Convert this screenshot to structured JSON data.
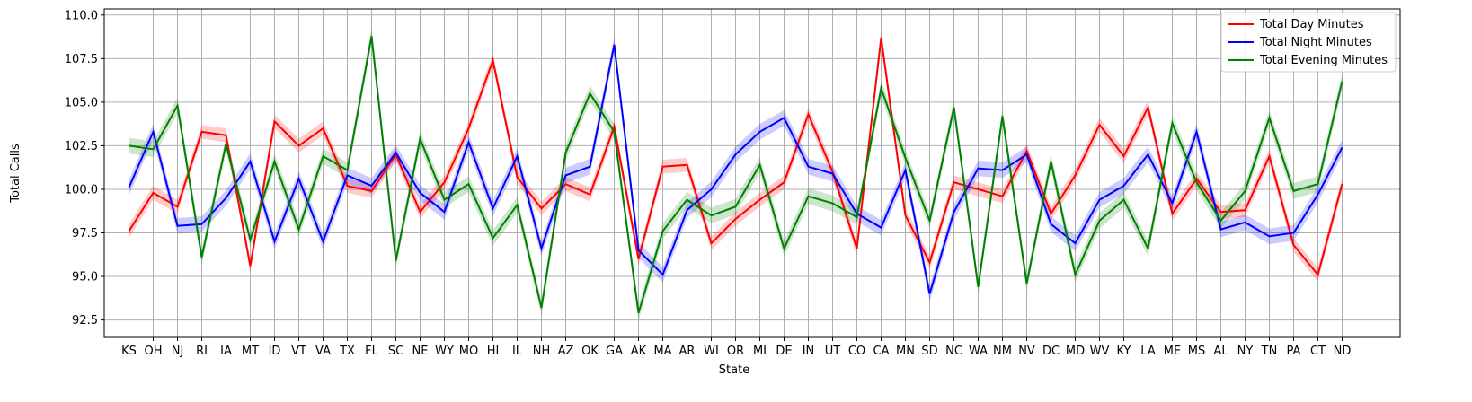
{
  "chart_data": {
    "type": "line",
    "title": "",
    "xlabel": "State",
    "ylabel": "Total Calls",
    "ylim": [
      91.5,
      110.35
    ],
    "yticks": [
      "92.5",
      "95.0",
      "97.5",
      "100.0",
      "102.5",
      "105.0",
      "107.5",
      "110.0"
    ],
    "grid": true,
    "legend_position": "top-right",
    "categories": [
      "KS",
      "OH",
      "NJ",
      "RI",
      "IA",
      "MT",
      "ID",
      "VT",
      "VA",
      "TX",
      "FL",
      "SC",
      "NE",
      "WY",
      "MO",
      "HI",
      "IL",
      "NH",
      "AZ",
      "OK",
      "GA",
      "AK",
      "MA",
      "AR",
      "WI",
      "OR",
      "MI",
      "DE",
      "IN",
      "UT",
      "CO",
      "CA",
      "MN",
      "SD",
      "NC",
      "WA",
      "NM",
      "NV",
      "DC",
      "MD",
      "WV",
      "KY",
      "LA",
      "ME",
      "MS",
      "AL",
      "NY",
      "TN",
      "PA",
      "CT",
      "ND"
    ],
    "series": [
      {
        "name": "Total Day Minutes",
        "color": "#ff0000",
        "values": [
          97.6,
          99.8,
          99.0,
          103.3,
          103.1,
          95.6,
          103.9,
          102.5,
          103.5,
          100.2,
          99.9,
          102.0,
          98.7,
          100.4,
          103.5,
          107.4,
          100.7,
          98.9,
          100.3,
          99.7,
          103.6,
          96.0,
          101.3,
          101.4,
          96.9,
          98.3,
          99.4,
          100.4,
          104.3,
          101.0,
          96.6,
          108.7,
          98.5,
          95.8,
          100.4,
          100.0,
          99.6,
          102.2,
          98.6,
          100.8,
          103.7,
          101.9,
          104.7,
          98.6,
          100.6,
          98.7,
          98.8,
          101.9,
          96.8,
          95.1,
          100.3
        ],
        "band": 0.4
      },
      {
        "name": "Total Night Minutes",
        "color": "#0000ff",
        "values": [
          100.1,
          103.3,
          97.9,
          98.0,
          99.5,
          101.6,
          97.0,
          100.6,
          97.0,
          100.8,
          100.2,
          102.1,
          99.8,
          98.7,
          102.7,
          98.9,
          101.9,
          96.6,
          100.8,
          101.3,
          108.3,
          96.5,
          95.1,
          98.8,
          100.0,
          102.0,
          103.3,
          104.1,
          101.3,
          100.9,
          98.6,
          97.8,
          101.1,
          94.0,
          98.7,
          101.2,
          101.1,
          102.0,
          98.0,
          96.9,
          99.4,
          100.2,
          102.0,
          99.2,
          103.3,
          97.7,
          98.1,
          97.3,
          97.5,
          99.7,
          102.4
        ],
        "band": 0.45
      },
      {
        "name": "Total Evening Minutes",
        "color": "#008000",
        "values": [
          102.5,
          102.3,
          104.8,
          96.1,
          102.6,
          97.1,
          101.6,
          97.7,
          101.9,
          101.1,
          108.8,
          95.9,
          102.9,
          99.4,
          100.3,
          97.2,
          99.1,
          93.2,
          102.1,
          105.5,
          103.3,
          92.9,
          97.6,
          99.4,
          98.5,
          99.0,
          101.4,
          96.6,
          99.6,
          99.2,
          98.4,
          105.8,
          101.8,
          98.2,
          104.7,
          94.4,
          104.2,
          94.6,
          101.6,
          95.1,
          98.2,
          99.4,
          96.6,
          103.8,
          100.4,
          98.2,
          99.9,
          104.1,
          99.9,
          100.3,
          106.2
        ],
        "band": 0.45
      }
    ]
  }
}
